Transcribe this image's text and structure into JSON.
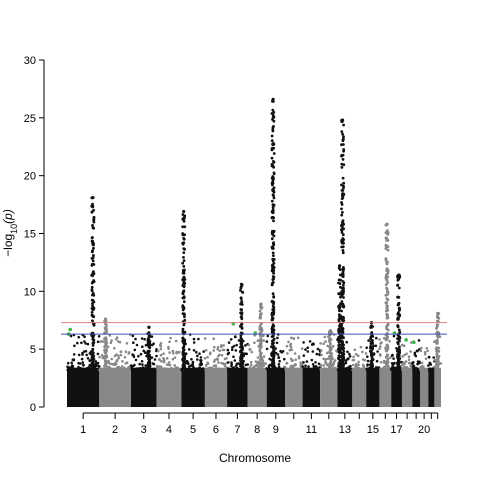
{
  "chart_data": {
    "type": "scatter",
    "xlabel": "Chromosome",
    "ylabel": "-log10(p)",
    "ylabel_parts": {
      "prefix": "−log",
      "sub": "10",
      "suffix": "(p)"
    },
    "ylim": [
      0,
      30
    ],
    "yticks": [
      0,
      5,
      10,
      15,
      20,
      25,
      30
    ],
    "xtick_labels": [
      "1",
      "2",
      "3",
      "4",
      "5",
      "6",
      "7",
      "8",
      "9",
      "11",
      "13",
      "15",
      "17",
      "20"
    ],
    "colors": {
      "odd": "#111111",
      "even": "#888888",
      "highlight": "#3cb44b",
      "genome_wide_line": "#e08080",
      "suggestive_line": "#3f4fb5"
    },
    "reference_lines": [
      {
        "name": "genome-wide-threshold",
        "y": 7.3
      },
      {
        "name": "suggestive-threshold",
        "y": 6.3
      }
    ],
    "chromosomes": [
      {
        "chr": 1,
        "max": 18.1,
        "peaks": [
          {
            "pos": 0.8,
            "y": 18.1
          }
        ],
        "hits": [
          {
            "pos": 0.05,
            "y": 6.3
          },
          {
            "pos": 0.1,
            "y": 6.7
          }
        ]
      },
      {
        "chr": 2,
        "max": 7.6,
        "peaks": [
          {
            "pos": 0.2,
            "y": 7.6
          }
        ],
        "hits": []
      },
      {
        "chr": 3,
        "max": 6.9,
        "peaks": [
          {
            "pos": 0.7,
            "y": 6.9
          }
        ],
        "hits": []
      },
      {
        "chr": 4,
        "max": 6.3,
        "peaks": [],
        "hits": []
      },
      {
        "chr": 5,
        "max": 16.9,
        "peaks": [
          {
            "pos": 0.1,
            "y": 16.9
          }
        ],
        "hits": []
      },
      {
        "chr": 6,
        "max": 6.0,
        "peaks": [],
        "hits": []
      },
      {
        "chr": 7,
        "max": 10.6,
        "peaks": [
          {
            "pos": 0.7,
            "y": 10.6
          }
        ],
        "hits": [
          {
            "pos": 0.3,
            "y": 7.2
          }
        ]
      },
      {
        "chr": 8,
        "max": 8.9,
        "peaks": [
          {
            "pos": 0.7,
            "y": 8.9
          }
        ],
        "hits": [
          {
            "pos": 0.4,
            "y": 6.4
          }
        ]
      },
      {
        "chr": 9,
        "max": 26.6,
        "peaks": [
          {
            "pos": 0.35,
            "y": 26.6
          }
        ],
        "hits": []
      },
      {
        "chr": 10,
        "max": 6.0,
        "peaks": [],
        "hits": []
      },
      {
        "chr": 11,
        "max": 5.7,
        "peaks": [],
        "hits": []
      },
      {
        "chr": 12,
        "max": 6.6,
        "peaks": [
          {
            "pos": 0.6,
            "y": 6.6
          }
        ],
        "hits": []
      },
      {
        "chr": 13,
        "max": 24.8,
        "peaks": [
          {
            "pos": 0.35,
            "y": 24.8
          },
          {
            "pos": 0.15,
            "y": 12.2
          }
        ],
        "hits": []
      },
      {
        "chr": 14,
        "max": 5.4,
        "peaks": [],
        "hits": []
      },
      {
        "chr": 15,
        "max": 7.3,
        "peaks": [
          {
            "pos": 0.4,
            "y": 7.3
          }
        ],
        "hits": []
      },
      {
        "chr": 16,
        "max": 15.8,
        "peaks": [
          {
            "pos": 0.65,
            "y": 15.8
          }
        ],
        "hits": []
      },
      {
        "chr": 17,
        "max": 11.4,
        "peaks": [
          {
            "pos": 0.7,
            "y": 11.4
          }
        ],
        "hits": [
          {
            "pos": 0.3,
            "y": 6.4
          }
        ]
      },
      {
        "chr": 18,
        "max": 6.2,
        "peaks": [],
        "hits": [
          {
            "pos": 0.4,
            "y": 5.8
          }
        ]
      },
      {
        "chr": 19,
        "max": 6.1,
        "peaks": [],
        "hits": [
          {
            "pos": 0.2,
            "y": 5.6
          }
        ]
      },
      {
        "chr": 20,
        "max": 5.2,
        "peaks": [],
        "hits": []
      },
      {
        "chr": 21,
        "max": 5.0,
        "peaks": [],
        "hits": []
      },
      {
        "chr": 22,
        "max": 8.1,
        "peaks": [
          {
            "pos": 0.5,
            "y": 8.1
          }
        ],
        "hits": []
      }
    ]
  }
}
